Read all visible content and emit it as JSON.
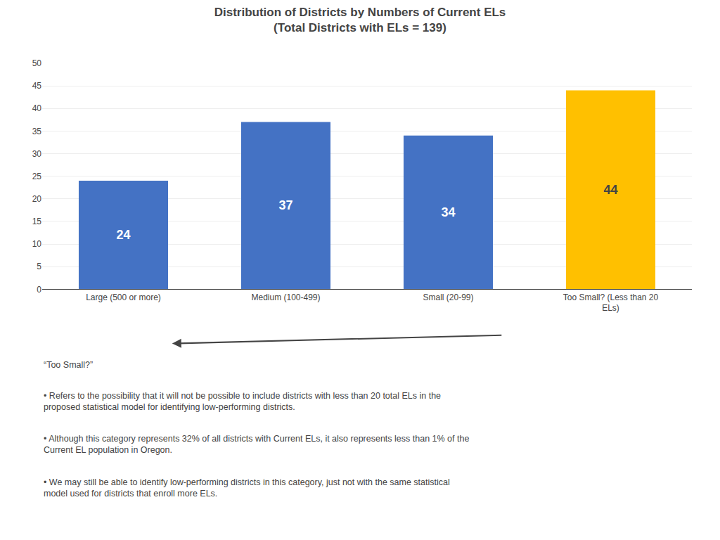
{
  "chart_data": {
    "type": "bar",
    "title": "Distribution of Districts by Numbers of Current ELs",
    "subtitle": "(Total Districts with ELs = 139)",
    "categories": [
      "Large (500 or more)",
      "Medium (100-499)",
      "Small (20-99)",
      "Too Small? (Less than 20\nELs)"
    ],
    "values": [
      24,
      37,
      34,
      44
    ],
    "colors": [
      "#4472C4",
      "#4472C4",
      "#4472C4",
      "#FFC000"
    ],
    "ylim": [
      0,
      50
    ],
    "yticks": [
      0,
      5,
      10,
      15,
      20,
      25,
      30,
      35,
      40,
      45,
      50
    ],
    "grid": true,
    "data_labels": true,
    "annotations": [
      "“Too Small?”",
      "• Refers to the possibility that it will not be possible to include districts with less than 20 total ELs in the\nproposed statistical model for identifying low-performing districts.",
      "• Although this category represents 32% of all districts with Current ELs, it also represents less than 1% of the\nCurrent EL population in Oregon.",
      "• We may still be able to identify low-performing districts in this category, just not with the same statistical\nmodel used for districts that enroll more ELs."
    ]
  }
}
